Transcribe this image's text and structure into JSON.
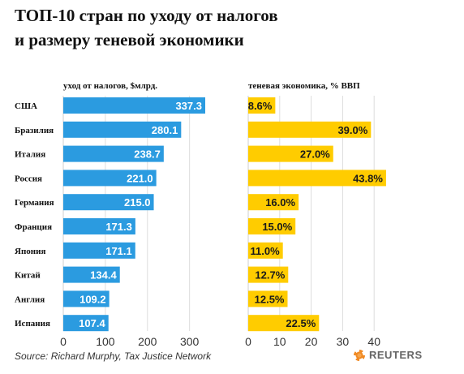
{
  "title_line1": "ТОП-10 стран по уходу от налогов",
  "title_line2": "и размеру теневой экономики",
  "source": "Source: Richard Murphy, Tax Justice Network",
  "brand": "REUTERS",
  "colors": {
    "left_bar": "#2b9be0",
    "right_bar": "#ffcc00"
  },
  "chart_data": [
    {
      "type": "bar",
      "orientation": "horizontal",
      "title": "уход от налогов, $млрд.",
      "categories": [
        "США",
        "Бразилия",
        "Италия",
        "Россия",
        "Германия",
        "Франция",
        "Япония",
        "Китай",
        "Англия",
        "Испания"
      ],
      "values": [
        337.3,
        280.1,
        238.7,
        221.0,
        215.0,
        171.3,
        171.1,
        134.4,
        109.2,
        107.4
      ],
      "value_labels": [
        "337.3",
        "280.1",
        "238.7",
        "221.0",
        "215.0",
        "171.3",
        "171.1",
        "134.4",
        "109.2",
        "107.4"
      ],
      "xlim": [
        0,
        337.3
      ],
      "xticks": [
        "0",
        "100",
        "200",
        "300"
      ],
      "xtick_values": [
        0,
        100,
        200,
        300
      ]
    },
    {
      "type": "bar",
      "orientation": "horizontal",
      "title": "теневая экономика, % ВВП",
      "categories": [
        "США",
        "Бразилия",
        "Италия",
        "Россия",
        "Германия",
        "Франция",
        "Япония",
        "Китай",
        "Англия",
        "Испания"
      ],
      "values": [
        8.6,
        39.0,
        27.0,
        43.8,
        16.0,
        15.0,
        11.0,
        12.7,
        12.5,
        22.5
      ],
      "value_labels": [
        "8.6%",
        "39.0%",
        "27.0%",
        "43.8%",
        "16.0%",
        "15.0%",
        "11.0%",
        "12.7%",
        "12.5%",
        "22.5%"
      ],
      "xlim": [
        0,
        50
      ],
      "xticks": [
        "0",
        "10",
        "20",
        "30",
        "40"
      ],
      "xtick_values": [
        0,
        10,
        20,
        30,
        40
      ]
    }
  ]
}
